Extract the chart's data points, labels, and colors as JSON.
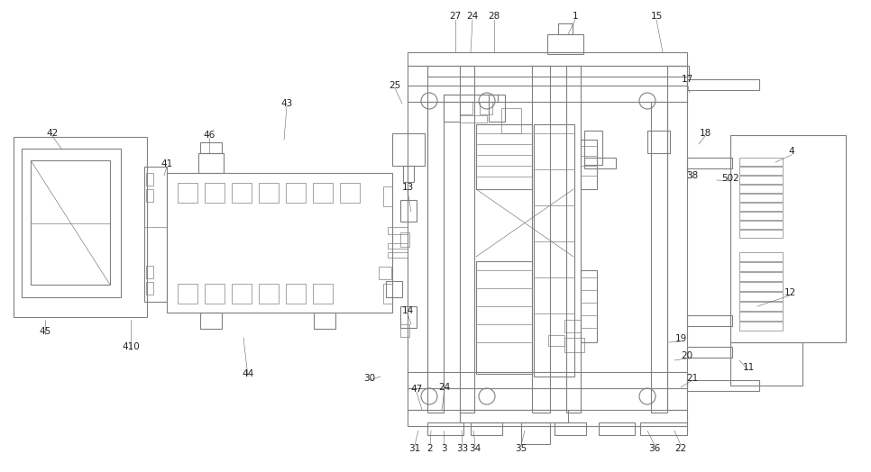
{
  "bg_color": "#ffffff",
  "line_color": "#808080",
  "lw": 0.8,
  "tlw": 0.5,
  "font_size": 7.5,
  "ann_color": "#222222"
}
